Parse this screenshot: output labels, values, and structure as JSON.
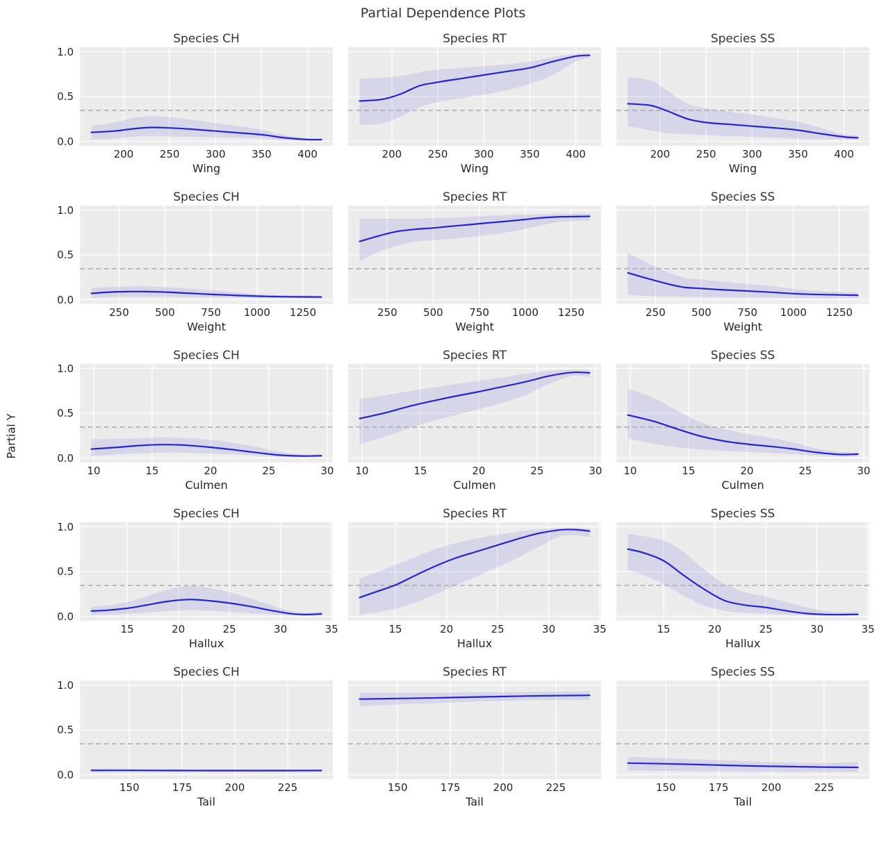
{
  "figure": {
    "title": "Partial Dependence Plots",
    "ylabel": "Partial Y"
  },
  "chart_data": {
    "type": "line",
    "title": "Partial Dependence Plots",
    "ylabel": "Partial Y",
    "ylim": [
      0,
      1
    ],
    "yticks": [
      "1.0",
      "0.5",
      "0.0"
    ],
    "ytick_values": [
      1.0,
      0.5,
      0.0
    ],
    "grid": "on",
    "baseline": 0.345,
    "columns": [
      "Species CH",
      "Species RT",
      "Species SS"
    ],
    "style": {
      "line_color": "#2525cf",
      "band_color": "rgba(70,70,205,0.13)",
      "baseline_color": "#a9a9a9",
      "axes_bg": "#ececec",
      "grid_color": "#ffffff",
      "text_color": "#262626"
    },
    "rows": [
      {
        "feature": "Wing",
        "xticks": [
          200,
          250,
          300,
          350,
          400
        ],
        "x": [
          165,
          190,
          210,
          230,
          250,
          275,
          300,
          325,
          350,
          375,
          400,
          415
        ],
        "series": [
          {
            "species": "CH",
            "y": [
              0.1,
              0.115,
              0.14,
              0.155,
              0.15,
              0.135,
              0.115,
              0.095,
              0.075,
              0.04,
              0.02,
              0.02
            ],
            "lo": [
              0.02,
              0.03,
              0.05,
              0.06,
              0.055,
              0.05,
              0.045,
              0.04,
              0.03,
              0.015,
              0.01,
              0.01
            ],
            "hi": [
              0.17,
              0.21,
              0.26,
              0.28,
              0.27,
              0.24,
              0.205,
              0.17,
              0.13,
              0.07,
              0.035,
              0.035
            ]
          },
          {
            "species": "RT",
            "y": [
              0.45,
              0.47,
              0.53,
              0.62,
              0.66,
              0.7,
              0.74,
              0.78,
              0.82,
              0.89,
              0.95,
              0.96
            ],
            "lo": [
              0.18,
              0.2,
              0.28,
              0.38,
              0.44,
              0.48,
              0.52,
              0.57,
              0.64,
              0.74,
              0.89,
              0.93
            ],
            "hi": [
              0.7,
              0.71,
              0.73,
              0.77,
              0.8,
              0.82,
              0.84,
              0.86,
              0.89,
              0.94,
              0.975,
              0.98
            ]
          },
          {
            "species": "SS",
            "y": [
              0.42,
              0.4,
              0.33,
              0.25,
              0.21,
              0.19,
              0.17,
              0.15,
              0.125,
              0.085,
              0.05,
              0.04
            ],
            "lo": [
              0.17,
              0.12,
              0.09,
              0.08,
              0.07,
              0.06,
              0.05,
              0.04,
              0.03,
              0.025,
              0.02,
              0.02
            ],
            "hi": [
              0.72,
              0.68,
              0.55,
              0.42,
              0.37,
              0.33,
              0.3,
              0.26,
              0.22,
              0.15,
              0.08,
              0.07
            ]
          }
        ]
      },
      {
        "feature": "Weight",
        "xticks": [
          250,
          500,
          750,
          1000,
          1250
        ],
        "x": [
          100,
          200,
          300,
          400,
          500,
          600,
          700,
          800,
          900,
          1000,
          1100,
          1200,
          1350
        ],
        "series": [
          {
            "species": "CH",
            "y": [
              0.07,
              0.085,
              0.09,
              0.09,
              0.085,
              0.075,
              0.065,
              0.055,
              0.047,
              0.04,
              0.035,
              0.032,
              0.03
            ],
            "lo": [
              0.02,
              0.03,
              0.032,
              0.033,
              0.032,
              0.03,
              0.027,
              0.024,
              0.021,
              0.019,
              0.018,
              0.017,
              0.016
            ],
            "hi": [
              0.13,
              0.142,
              0.15,
              0.15,
              0.142,
              0.13,
              0.115,
              0.098,
              0.08,
              0.062,
              0.052,
              0.047,
              0.045
            ]
          },
          {
            "species": "RT",
            "y": [
              0.65,
              0.71,
              0.76,
              0.785,
              0.8,
              0.82,
              0.838,
              0.857,
              0.875,
              0.895,
              0.915,
              0.925,
              0.93
            ],
            "lo": [
              0.43,
              0.53,
              0.6,
              0.645,
              0.665,
              0.68,
              0.7,
              0.72,
              0.75,
              0.79,
              0.835,
              0.87,
              0.88
            ],
            "hi": [
              0.905,
              0.905,
              0.905,
              0.905,
              0.91,
              0.915,
              0.925,
              0.935,
              0.945,
              0.95,
              0.955,
              0.96,
              0.96
            ]
          },
          {
            "species": "SS",
            "y": [
              0.3,
              0.24,
              0.185,
              0.14,
              0.125,
              0.112,
              0.102,
              0.092,
              0.08,
              0.068,
              0.06,
              0.055,
              0.05
            ],
            "lo": [
              0.05,
              0.042,
              0.038,
              0.034,
              0.031,
              0.029,
              0.027,
              0.025,
              0.022,
              0.02,
              0.019,
              0.018,
              0.018
            ],
            "hi": [
              0.52,
              0.42,
              0.32,
              0.25,
              0.225,
              0.205,
              0.185,
              0.17,
              0.148,
              0.123,
              0.103,
              0.09,
              0.082
            ]
          }
        ]
      },
      {
        "feature": "Culmen",
        "xticks": [
          10,
          15,
          20,
          25,
          30
        ],
        "x": [
          9.8,
          12,
          14,
          16,
          18,
          20,
          22,
          24,
          26,
          28,
          29.5
        ],
        "series": [
          {
            "species": "CH",
            "y": [
              0.1,
              0.12,
              0.14,
              0.15,
              0.142,
              0.12,
              0.092,
              0.06,
              0.032,
              0.022,
              0.026
            ],
            "lo": [
              0.02,
              0.04,
              0.052,
              0.06,
              0.058,
              0.05,
              0.04,
              0.028,
              0.015,
              0.01,
              0.012
            ],
            "hi": [
              0.21,
              0.213,
              0.222,
              0.232,
              0.222,
              0.203,
              0.17,
              0.125,
              0.068,
              0.04,
              0.042
            ]
          },
          {
            "species": "RT",
            "y": [
              0.44,
              0.505,
              0.575,
              0.635,
              0.69,
              0.74,
              0.795,
              0.85,
              0.915,
              0.955,
              0.95
            ],
            "lo": [
              0.15,
              0.24,
              0.33,
              0.41,
              0.48,
              0.545,
              0.615,
              0.7,
              0.825,
              0.915,
              0.905
            ],
            "hi": [
              0.66,
              0.7,
              0.745,
              0.785,
              0.825,
              0.86,
              0.9,
              0.94,
              0.97,
              0.985,
              0.98
            ]
          },
          {
            "species": "SS",
            "y": [
              0.48,
              0.41,
              0.325,
              0.245,
              0.19,
              0.155,
              0.13,
              0.1,
              0.062,
              0.04,
              0.044
            ],
            "lo": [
              0.22,
              0.16,
              0.12,
              0.097,
              0.08,
              0.068,
              0.058,
              0.042,
              0.028,
              0.018,
              0.02
            ],
            "hi": [
              0.78,
              0.67,
              0.53,
              0.4,
              0.325,
              0.27,
              0.225,
              0.175,
              0.105,
              0.068,
              0.07
            ]
          }
        ]
      },
      {
        "feature": "Hallux",
        "xticks": [
          15,
          20,
          25,
          30,
          35
        ],
        "x": [
          11.5,
          13,
          15,
          17,
          19,
          21,
          23,
          25,
          27,
          29,
          31,
          32.5,
          34
        ],
        "series": [
          {
            "species": "CH",
            "y": [
              0.06,
              0.068,
              0.09,
              0.128,
              0.168,
              0.188,
              0.175,
              0.148,
              0.112,
              0.068,
              0.03,
              0.02,
              0.028
            ],
            "lo": [
              0.018,
              0.02,
              0.028,
              0.042,
              0.06,
              0.068,
              0.063,
              0.05,
              0.037,
              0.022,
              0.01,
              0.008,
              0.01
            ],
            "hi": [
              0.108,
              0.122,
              0.16,
              0.228,
              0.3,
              0.338,
              0.318,
              0.27,
              0.203,
              0.128,
              0.058,
              0.04,
              0.05
            ]
          },
          {
            "species": "RT",
            "y": [
              0.21,
              0.27,
              0.35,
              0.46,
              0.565,
              0.655,
              0.725,
              0.795,
              0.865,
              0.925,
              0.963,
              0.968,
              0.952
            ],
            "lo": [
              0.02,
              0.045,
              0.085,
              0.155,
              0.25,
              0.35,
              0.45,
              0.55,
              0.655,
              0.775,
              0.885,
              0.905,
              0.885
            ],
            "hi": [
              0.42,
              0.485,
              0.575,
              0.665,
              0.755,
              0.82,
              0.87,
              0.91,
              0.945,
              0.97,
              0.985,
              0.985,
              0.98
            ]
          },
          {
            "species": "SS",
            "y": [
              0.75,
              0.71,
              0.62,
              0.455,
              0.3,
              0.175,
              0.125,
              0.1,
              0.062,
              0.032,
              0.02,
              0.02,
              0.022
            ],
            "lo": [
              0.52,
              0.46,
              0.36,
              0.225,
              0.12,
              0.062,
              0.04,
              0.03,
              0.02,
              0.012,
              0.008,
              0.008,
              0.01
            ],
            "hi": [
              0.92,
              0.895,
              0.845,
              0.715,
              0.52,
              0.36,
              0.27,
              0.22,
              0.16,
              0.1,
              0.058,
              0.048,
              0.058
            ]
          }
        ]
      },
      {
        "feature": "Tail",
        "xticks": [
          150,
          175,
          200,
          225
        ],
        "x": [
          132,
          150,
          170,
          190,
          210,
          225,
          241
        ],
        "series": [
          {
            "species": "CH",
            "y": [
              0.048,
              0.048,
              0.047,
              0.046,
              0.046,
              0.046,
              0.047
            ],
            "lo": [
              0.032,
              0.033,
              0.034,
              0.035,
              0.035,
              0.035,
              0.035
            ],
            "hi": [
              0.068,
              0.066,
              0.062,
              0.059,
              0.058,
              0.058,
              0.06
            ]
          },
          {
            "species": "RT",
            "y": [
              0.843,
              0.85,
              0.858,
              0.868,
              0.877,
              0.882,
              0.886
            ],
            "lo": [
              0.762,
              0.782,
              0.8,
              0.818,
              0.828,
              0.832,
              0.832
            ],
            "hi": [
              0.917,
              0.917,
              0.917,
              0.918,
              0.922,
              0.927,
              0.932
            ]
          },
          {
            "species": "SS",
            "y": [
              0.13,
              0.122,
              0.11,
              0.098,
              0.09,
              0.085,
              0.082
            ],
            "lo": [
              0.042,
              0.04,
              0.037,
              0.033,
              0.031,
              0.03,
              0.032
            ],
            "hi": [
              0.2,
              0.185,
              0.165,
              0.148,
              0.135,
              0.132,
              0.142
            ]
          }
        ]
      }
    ]
  }
}
